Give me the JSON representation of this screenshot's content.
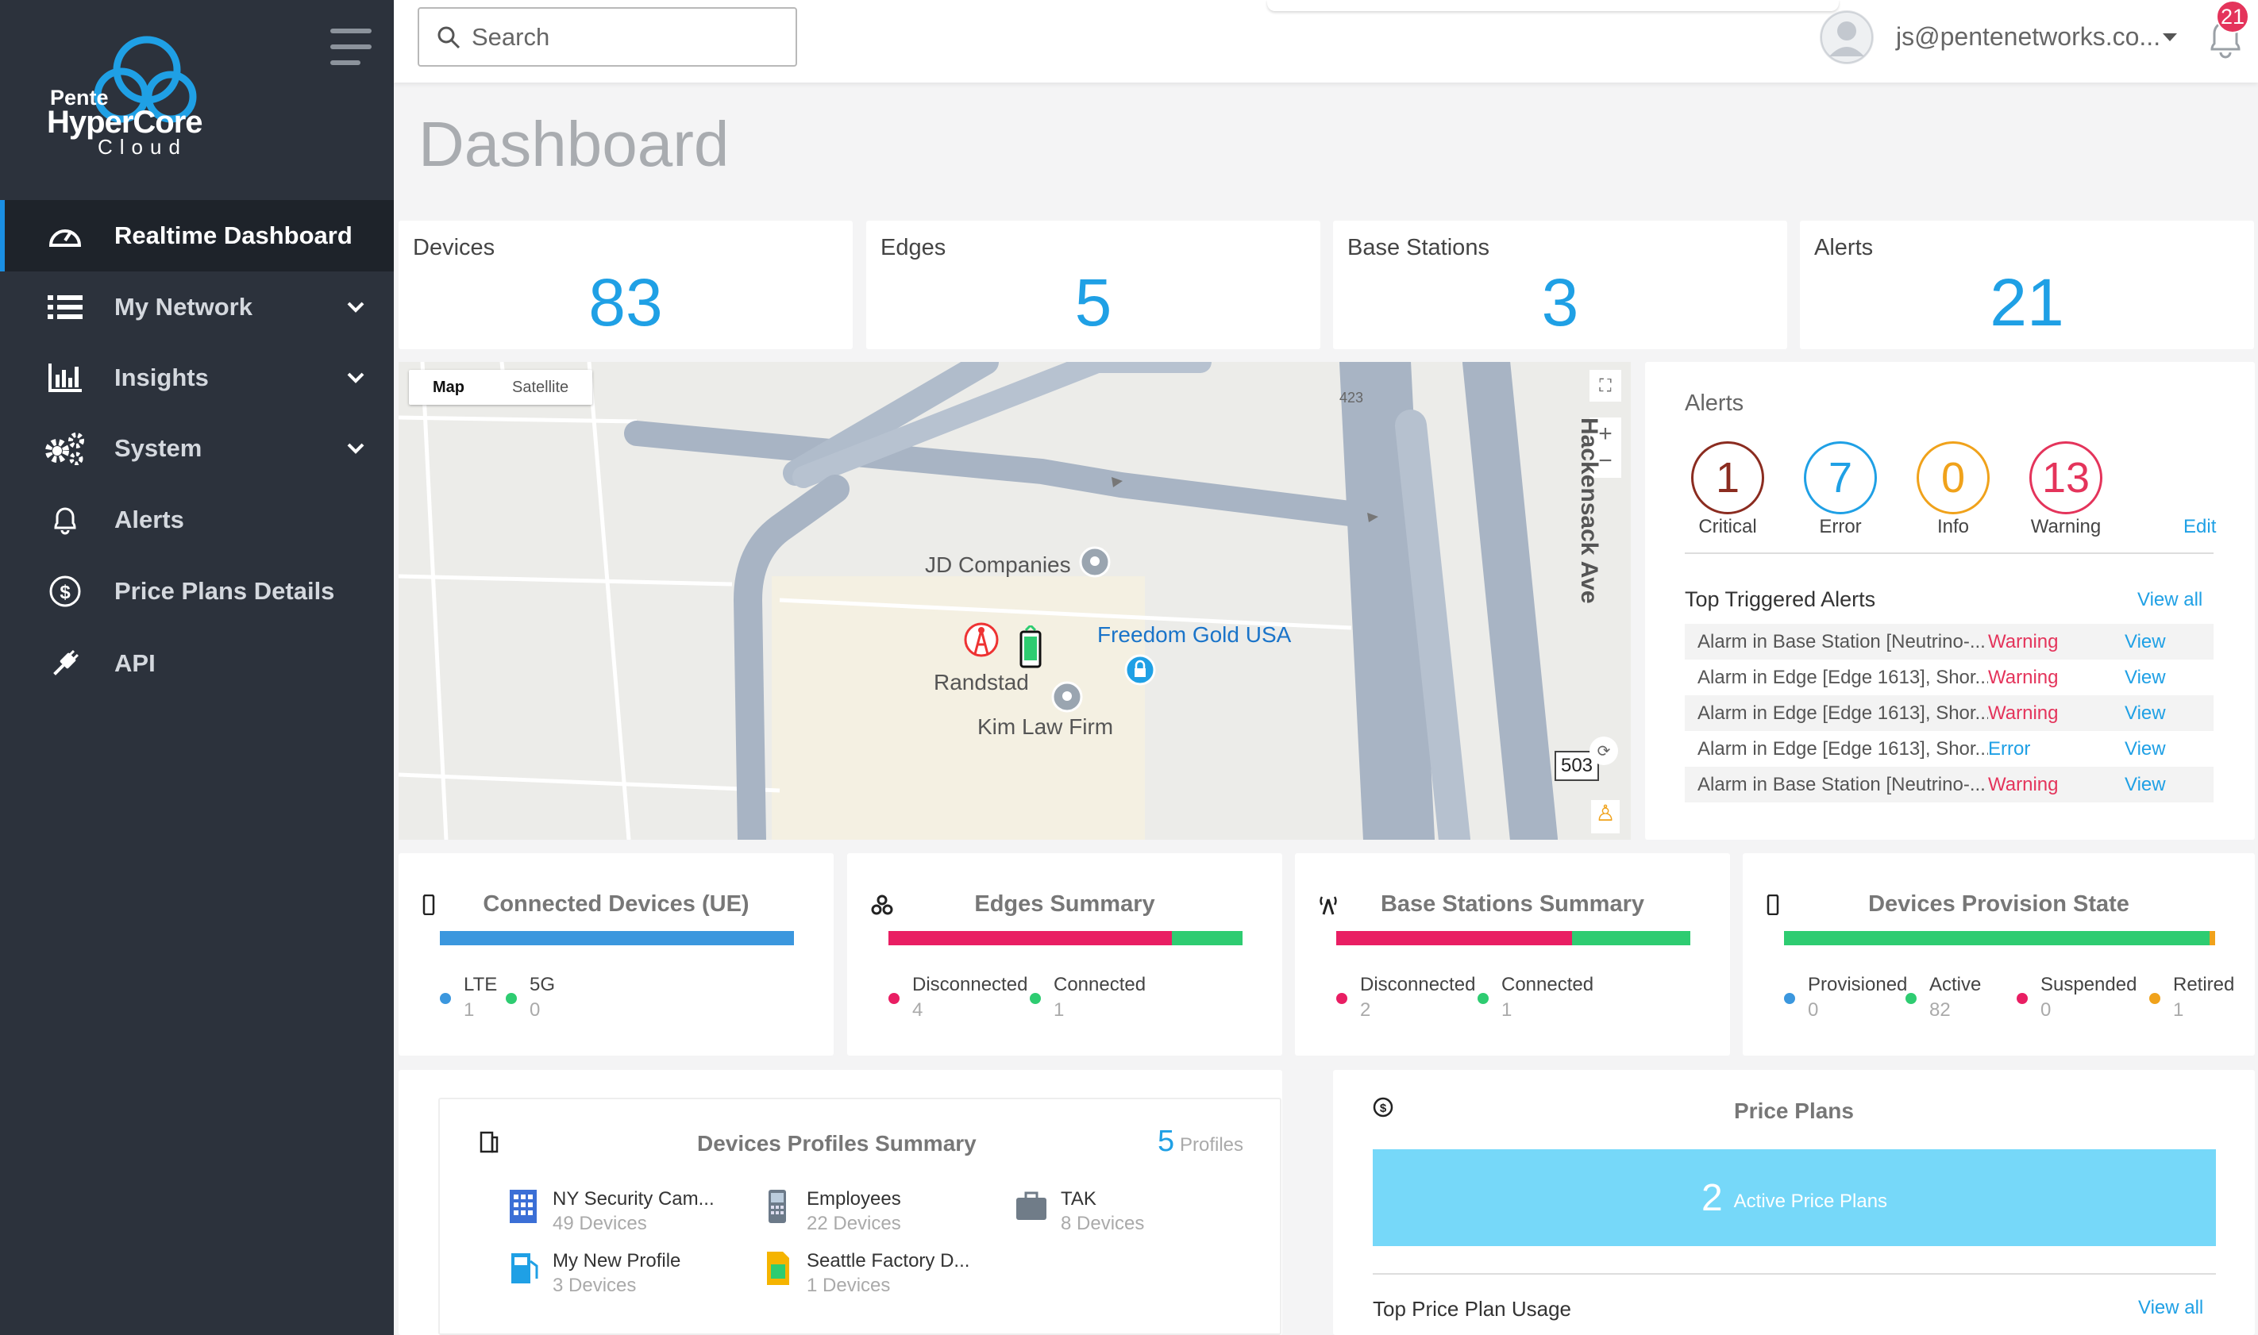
{
  "brand": {
    "line1": "Pente",
    "line2": "HyperCore",
    "line3": "Cloud"
  },
  "nav": [
    {
      "label": "Realtime Dashboard",
      "icon": "speedometer-icon"
    },
    {
      "label": "My Network",
      "icon": "list-icon"
    },
    {
      "label": "Insights",
      "icon": "bar-chart-icon"
    },
    {
      "label": "System",
      "icon": "gears-icon"
    },
    {
      "label": "Alerts",
      "icon": "bell-icon"
    },
    {
      "label": "Price Plans Details",
      "icon": "dollar-circle-icon"
    },
    {
      "label": "API",
      "icon": "plug-icon"
    }
  ],
  "topbar": {
    "search_placeholder": "Search",
    "user_email": "js@pentenetworks.co...",
    "notifications": "21"
  },
  "page_title": "Dashboard",
  "stats": [
    {
      "label": "Devices",
      "value": "83"
    },
    {
      "label": "Edges",
      "value": "5"
    },
    {
      "label": "Base Stations",
      "value": "3"
    },
    {
      "label": "Alerts",
      "value": "21"
    }
  ],
  "map": {
    "tab_map": "Map",
    "tab_satellite": "Satellite",
    "road_label": "423",
    "street": "Hackensack Ave",
    "shield": "503",
    "pois": {
      "jd": "JD Companies",
      "freedom": "Freedom Gold USA",
      "randstad": "Randstad",
      "kim": "Kim Law Firm"
    }
  },
  "alerts_panel": {
    "title": "Alerts",
    "counts": [
      {
        "value": "1",
        "label": "Critical",
        "color": "#8b2c20"
      },
      {
        "value": "7",
        "label": "Error",
        "color": "#1fa0e5"
      },
      {
        "value": "0",
        "label": "Info",
        "color": "#f0a21b"
      },
      {
        "value": "13",
        "label": "Warning",
        "color": "#e4345b"
      }
    ],
    "edit": "Edit",
    "top_title": "Top Triggered Alerts",
    "view_all": "View all",
    "rows": [
      {
        "msg": "Alarm in Base Station [Neutrino-...",
        "sev": "Warning",
        "action": "View"
      },
      {
        "msg": "Alarm in Edge [Edge 1613], Shor...",
        "sev": "Warning",
        "action": "View"
      },
      {
        "msg": "Alarm in Edge [Edge 1613], Shor...",
        "sev": "Warning",
        "action": "View"
      },
      {
        "msg": "Alarm in Edge [Edge 1613], Shor...",
        "sev": "Error",
        "action": "View"
      },
      {
        "msg": "Alarm in Base Station [Neutrino-...",
        "sev": "Warning",
        "action": "View"
      }
    ]
  },
  "summaries": {
    "connected": {
      "title": "Connected Devices (UE)",
      "legend": [
        {
          "label": "LTE",
          "value": "1",
          "color": "#3b97de"
        },
        {
          "label": "5G",
          "value": "0",
          "color": "#2ecc71"
        }
      ],
      "bar": [
        {
          "frac": 1,
          "color": "#3b97de"
        }
      ]
    },
    "edges": {
      "title": "Edges Summary",
      "legend": [
        {
          "label": "Disconnected",
          "value": "4",
          "color": "#e91e63"
        },
        {
          "label": "Connected",
          "value": "1",
          "color": "#2ecc71"
        }
      ],
      "bar": [
        {
          "frac": 0.8,
          "color": "#e91e63"
        },
        {
          "frac": 0.2,
          "color": "#2ecc71"
        }
      ]
    },
    "bases": {
      "title": "Base Stations Summary",
      "legend": [
        {
          "label": "Disconnected",
          "value": "2",
          "color": "#e91e63"
        },
        {
          "label": "Connected",
          "value": "1",
          "color": "#2ecc71"
        }
      ],
      "bar": [
        {
          "frac": 0.667,
          "color": "#e91e63"
        },
        {
          "frac": 0.333,
          "color": "#2ecc71"
        }
      ]
    },
    "provision": {
      "title": "Devices Provision State",
      "legend": [
        {
          "label": "Provisioned",
          "value": "0",
          "color": "#3b97de"
        },
        {
          "label": "Active",
          "value": "82",
          "color": "#2ecc71"
        },
        {
          "label": "Suspended",
          "value": "0",
          "color": "#e91e63"
        },
        {
          "label": "Retired",
          "value": "1",
          "color": "#f0a21b"
        }
      ],
      "bar": [
        {
          "frac": 0.988,
          "color": "#2ecc71"
        },
        {
          "frac": 0.012,
          "color": "#f0a21b"
        }
      ]
    }
  },
  "profiles": {
    "title": "Devices Profiles Summary",
    "count": "5",
    "count_label": "Profiles",
    "items": [
      {
        "name": "NY Security Cam...",
        "devices": "49 Devices",
        "icon": "building-icon"
      },
      {
        "name": "Employees",
        "devices": "22 Devices",
        "icon": "phone-icon"
      },
      {
        "name": "TAK",
        "devices": "8 Devices",
        "icon": "briefcase-icon"
      },
      {
        "name": "My New Profile",
        "devices": "3 Devices",
        "icon": "gas-pump-icon"
      },
      {
        "name": "Seattle Factory D...",
        "devices": "1 Devices",
        "icon": "sim-card-icon"
      }
    ]
  },
  "price": {
    "title": "Price Plans",
    "active_count": "2",
    "active_label": "Active Price Plans",
    "top_usage": "Top Price Plan Usage",
    "view_all": "View all"
  }
}
